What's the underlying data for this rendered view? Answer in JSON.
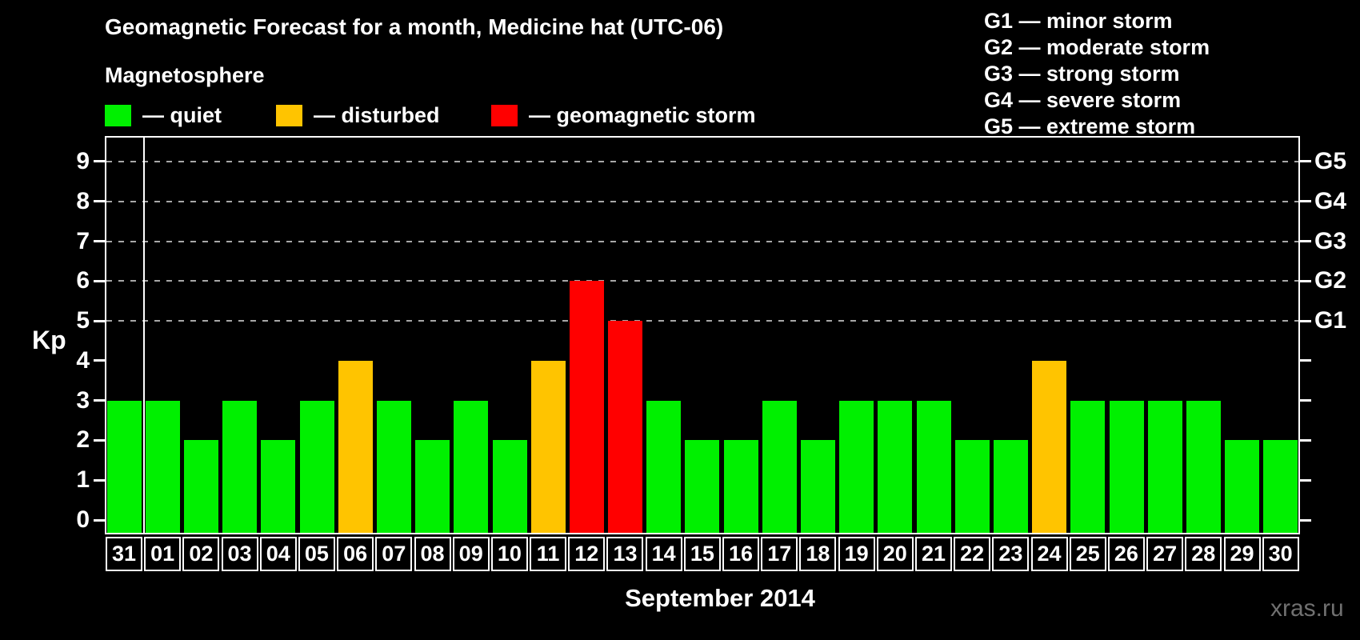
{
  "title": "Geomagnetic Forecast for a month, Medicine hat (UTC-06)",
  "subtitle": "Magnetosphere",
  "legend": {
    "items": [
      {
        "label": "— quiet",
        "status": "quiet",
        "color": "#00f000"
      },
      {
        "label": "— disturbed",
        "status": "disturbed",
        "color": "#ffc400"
      },
      {
        "label": "— geomagnetic storm",
        "status": "storm",
        "color": "#ff0000"
      }
    ]
  },
  "storm_scale_legend": [
    "G1 — minor storm",
    "G2 — moderate storm",
    "G3 — strong storm",
    "G4 — severe storm",
    "G5 — extreme storm"
  ],
  "watermark": "xras.ru",
  "chart_data": {
    "type": "bar",
    "title": "Geomagnetic Forecast for a month, Medicine hat (UTC-06)",
    "xlabel": "September 2014",
    "ylabel": "Kp",
    "ylim": [
      0,
      9.6
    ],
    "grid": "horizontal dashed lines at Kp 5–9 only",
    "legend_position": "top-left (status colors) and top-right (G scale)",
    "status_colors": {
      "quiet": "#00f000",
      "disturbed": "#ffc400",
      "storm": "#ff0000"
    },
    "y_ticks": [
      0,
      1,
      2,
      3,
      4,
      5,
      6,
      7,
      8,
      9
    ],
    "gridline_kp": [
      5,
      6,
      7,
      8,
      9
    ],
    "right_axis": [
      {
        "kp": 5,
        "label": "G1"
      },
      {
        "kp": 6,
        "label": "G2"
      },
      {
        "kp": 7,
        "label": "G3"
      },
      {
        "kp": 8,
        "label": "G4"
      },
      {
        "kp": 9,
        "label": "G5"
      }
    ],
    "month_boundary_after_day": "31",
    "bars": [
      {
        "day": "31",
        "kp": 3,
        "status": "quiet"
      },
      {
        "day": "01",
        "kp": 3,
        "status": "quiet"
      },
      {
        "day": "02",
        "kp": 2,
        "status": "quiet"
      },
      {
        "day": "03",
        "kp": 3,
        "status": "quiet"
      },
      {
        "day": "04",
        "kp": 2,
        "status": "quiet"
      },
      {
        "day": "05",
        "kp": 3,
        "status": "quiet"
      },
      {
        "day": "06",
        "kp": 4,
        "status": "disturbed"
      },
      {
        "day": "07",
        "kp": 3,
        "status": "quiet"
      },
      {
        "day": "08",
        "kp": 2,
        "status": "quiet"
      },
      {
        "day": "09",
        "kp": 3,
        "status": "quiet"
      },
      {
        "day": "10",
        "kp": 2,
        "status": "quiet"
      },
      {
        "day": "11",
        "kp": 4,
        "status": "disturbed"
      },
      {
        "day": "12",
        "kp": 6,
        "status": "storm"
      },
      {
        "day": "13",
        "kp": 5,
        "status": "storm"
      },
      {
        "day": "14",
        "kp": 3,
        "status": "quiet"
      },
      {
        "day": "15",
        "kp": 2,
        "status": "quiet"
      },
      {
        "day": "16",
        "kp": 2,
        "status": "quiet"
      },
      {
        "day": "17",
        "kp": 3,
        "status": "quiet"
      },
      {
        "day": "18",
        "kp": 2,
        "status": "quiet"
      },
      {
        "day": "19",
        "kp": 3,
        "status": "quiet"
      },
      {
        "day": "20",
        "kp": 3,
        "status": "quiet"
      },
      {
        "day": "21",
        "kp": 3,
        "status": "quiet"
      },
      {
        "day": "22",
        "kp": 2,
        "status": "quiet"
      },
      {
        "day": "23",
        "kp": 2,
        "status": "quiet"
      },
      {
        "day": "24",
        "kp": 4,
        "status": "disturbed"
      },
      {
        "day": "25",
        "kp": 3,
        "status": "quiet"
      },
      {
        "day": "26",
        "kp": 3,
        "status": "quiet"
      },
      {
        "day": "27",
        "kp": 3,
        "status": "quiet"
      },
      {
        "day": "28",
        "kp": 3,
        "status": "quiet"
      },
      {
        "day": "29",
        "kp": 2,
        "status": "quiet"
      },
      {
        "day": "30",
        "kp": 2,
        "status": "quiet"
      }
    ]
  }
}
